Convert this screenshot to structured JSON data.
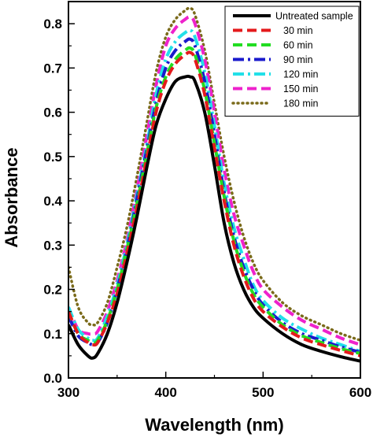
{
  "chart_data": {
    "type": "line",
    "xlabel": "Wavelength (nm)",
    "ylabel": "Absorbance",
    "xlim": [
      300,
      600
    ],
    "ylim": [
      0.0,
      0.85
    ],
    "x_ticks": [
      "300",
      "400",
      "500",
      "600"
    ],
    "y_ticks": [
      "0.0",
      "0.1",
      "0.2",
      "0.3",
      "0.4",
      "0.5",
      "0.6",
      "0.7",
      "0.8"
    ],
    "x_tick_values": [
      300,
      400,
      500,
      600
    ],
    "y_tick_values": [
      0.0,
      0.1,
      0.2,
      0.3,
      0.4,
      0.5,
      0.6,
      0.7,
      0.8
    ],
    "legend_position": "top-right",
    "grid": false,
    "x": [
      300,
      310,
      320,
      325,
      330,
      340,
      350,
      360,
      370,
      380,
      390,
      400,
      410,
      420,
      425,
      430,
      440,
      450,
      460,
      470,
      480,
      490,
      500,
      520,
      540,
      560,
      580,
      600
    ],
    "series": [
      {
        "name": "Untreated sample",
        "color": "#000000",
        "dash": "solid",
        "values": [
          0.12,
          0.075,
          0.05,
          0.045,
          0.055,
          0.1,
          0.17,
          0.26,
          0.36,
          0.47,
          0.57,
          0.63,
          0.67,
          0.68,
          0.68,
          0.67,
          0.6,
          0.48,
          0.35,
          0.26,
          0.2,
          0.16,
          0.135,
          0.1,
          0.075,
          0.06,
          0.048,
          0.038
        ]
      },
      {
        "name": "30 min",
        "color": "#e41a1c",
        "dash": "dashed",
        "values": [
          0.15,
          0.1,
          0.08,
          0.075,
          0.08,
          0.125,
          0.19,
          0.28,
          0.38,
          0.49,
          0.6,
          0.67,
          0.71,
          0.73,
          0.735,
          0.72,
          0.64,
          0.52,
          0.4,
          0.3,
          0.23,
          0.18,
          0.15,
          0.115,
          0.09,
          0.075,
          0.062,
          0.05
        ]
      },
      {
        "name": "60 min",
        "color": "#22dd22",
        "dash": "dashed",
        "values": [
          0.15,
          0.1,
          0.085,
          0.08,
          0.085,
          0.13,
          0.2,
          0.29,
          0.39,
          0.5,
          0.61,
          0.68,
          0.72,
          0.74,
          0.745,
          0.73,
          0.65,
          0.53,
          0.41,
          0.31,
          0.24,
          0.19,
          0.16,
          0.12,
          0.095,
          0.08,
          0.066,
          0.055
        ]
      },
      {
        "name": "90 min",
        "color": "#1a1acc",
        "dash": "dashdot",
        "values": [
          0.14,
          0.095,
          0.08,
          0.075,
          0.08,
          0.125,
          0.2,
          0.29,
          0.4,
          0.51,
          0.62,
          0.7,
          0.74,
          0.76,
          0.765,
          0.75,
          0.67,
          0.55,
          0.42,
          0.32,
          0.25,
          0.2,
          0.165,
          0.125,
          0.1,
          0.085,
          0.07,
          0.058
        ]
      },
      {
        "name": "120 min",
        "color": "#22e0e8",
        "dash": "dashdot",
        "values": [
          0.16,
          0.11,
          0.09,
          0.085,
          0.09,
          0.14,
          0.21,
          0.3,
          0.41,
          0.52,
          0.64,
          0.72,
          0.76,
          0.78,
          0.785,
          0.77,
          0.69,
          0.57,
          0.44,
          0.34,
          0.27,
          0.21,
          0.175,
          0.135,
          0.11,
          0.09,
          0.075,
          0.06
        ]
      },
      {
        "name": "150 min",
        "color": "#ee22cc",
        "dash": "dashed",
        "values": [
          0.16,
          0.11,
          0.1,
          0.1,
          0.105,
          0.15,
          0.22,
          0.31,
          0.42,
          0.54,
          0.66,
          0.75,
          0.79,
          0.81,
          0.815,
          0.8,
          0.72,
          0.6,
          0.47,
          0.37,
          0.3,
          0.24,
          0.2,
          0.16,
          0.13,
          0.11,
          0.09,
          0.075
        ]
      },
      {
        "name": "180 min",
        "color": "#7a6a1a",
        "dash": "dotted",
        "values": [
          0.25,
          0.16,
          0.125,
          0.12,
          0.125,
          0.17,
          0.25,
          0.34,
          0.45,
          0.57,
          0.69,
          0.77,
          0.81,
          0.83,
          0.835,
          0.82,
          0.74,
          0.62,
          0.5,
          0.4,
          0.32,
          0.26,
          0.22,
          0.17,
          0.14,
          0.12,
          0.1,
          0.085
        ]
      }
    ]
  }
}
